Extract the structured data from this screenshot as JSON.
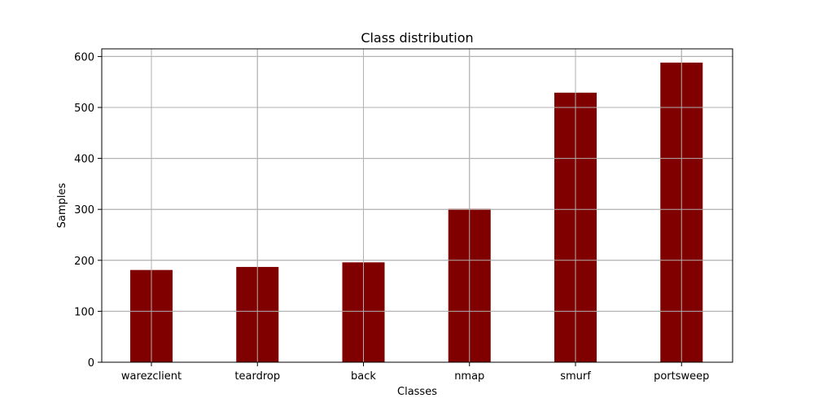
{
  "chart_data": {
    "type": "bar",
    "title": "Class distribution",
    "xlabel": "Classes",
    "ylabel": "Samples",
    "categories": [
      "warezclient",
      "teardrop",
      "back",
      "nmap",
      "smurf",
      "portsweep"
    ],
    "values": [
      181,
      187,
      196,
      301,
      529,
      588
    ],
    "ylim": [
      0,
      615
    ],
    "yticks": [
      0,
      100,
      200,
      300,
      400,
      500,
      600
    ],
    "grid": true,
    "bar_color": "#800000"
  }
}
